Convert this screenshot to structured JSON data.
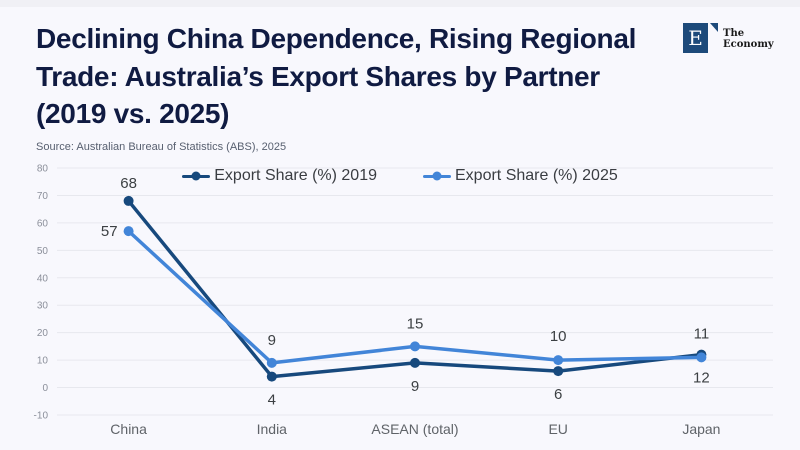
{
  "page": {
    "background": "#f8f8fd"
  },
  "header": {
    "title": "Declining China Dependence, Rising Regional Trade: Australia’s Export Shares by Partner (2019 vs. 2025)",
    "title_color": "#101b42",
    "source": "Source: Australian Bureau of Statistics (ABS), 2025"
  },
  "brand": {
    "initial": "E",
    "name": "The Economy",
    "square_color": "#1d4a7a"
  },
  "chart_data": {
    "type": "line",
    "categories": [
      "China",
      "India",
      "ASEAN (total)",
      "EU",
      "Japan"
    ],
    "series": [
      {
        "name": "Export Share (%) 2019",
        "color": "#17497d",
        "values": [
          68,
          4,
          9,
          6,
          12
        ]
      },
      {
        "name": "Export Share (%) 2025",
        "color": "#4285d8",
        "values": [
          57,
          9,
          15,
          10,
          11
        ]
      }
    ],
    "ylim": [
      -10,
      80
    ],
    "yticks": [
      80,
      70,
      60,
      50,
      40,
      30,
      20,
      10,
      0,
      -10
    ],
    "grid": true,
    "data_labels": true,
    "legend_position": "top-center",
    "xlabel": "",
    "ylabel": ""
  }
}
